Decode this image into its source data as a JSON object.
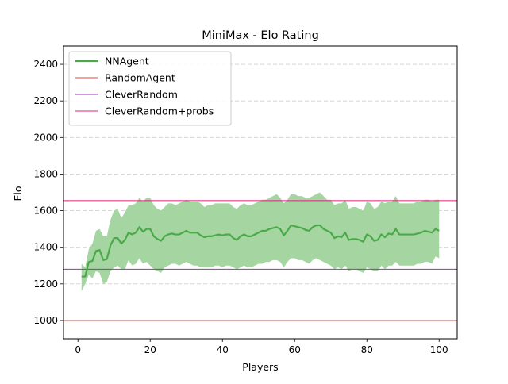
{
  "chart_data": {
    "type": "line",
    "title": "MiniMax - Elo Rating",
    "xlabel": "Players",
    "ylabel": "Elo",
    "xlim": [
      -4,
      105
    ],
    "ylim": [
      900,
      2500
    ],
    "xticks": [
      0,
      20,
      40,
      60,
      80,
      100
    ],
    "yticks": [
      1000,
      1200,
      1400,
      1600,
      1800,
      2000,
      2200,
      2400
    ],
    "grid": "horizontal dashed",
    "legend_position": "top-left",
    "series": [
      {
        "name": "NNAgent",
        "color": "#4aaa4a",
        "band_color": "#a5d6a1",
        "x": [
          1,
          2,
          3,
          4,
          5,
          6,
          7,
          8,
          9,
          10,
          11,
          12,
          13,
          14,
          15,
          16,
          17,
          18,
          19,
          20,
          21,
          22,
          23,
          24,
          25,
          26,
          27,
          28,
          29,
          30,
          31,
          32,
          33,
          34,
          35,
          36,
          37,
          38,
          39,
          40,
          41,
          42,
          43,
          44,
          45,
          46,
          47,
          48,
          49,
          50,
          51,
          52,
          53,
          54,
          55,
          56,
          57,
          58,
          59,
          60,
          61,
          62,
          63,
          64,
          65,
          66,
          67,
          68,
          69,
          70,
          71,
          72,
          73,
          74,
          75,
          76,
          77,
          78,
          79,
          80,
          81,
          82,
          83,
          84,
          85,
          86,
          87,
          88,
          89,
          90,
          91,
          92,
          93,
          94,
          95,
          96,
          97,
          98,
          99,
          100
        ],
        "y": [
          1240,
          1240,
          1320,
          1325,
          1380,
          1385,
          1330,
          1335,
          1410,
          1450,
          1450,
          1420,
          1440,
          1480,
          1470,
          1480,
          1510,
          1485,
          1500,
          1500,
          1460,
          1445,
          1435,
          1460,
          1470,
          1475,
          1470,
          1470,
          1480,
          1490,
          1480,
          1480,
          1480,
          1465,
          1455,
          1460,
          1460,
          1465,
          1470,
          1465,
          1470,
          1470,
          1450,
          1440,
          1460,
          1470,
          1460,
          1460,
          1470,
          1480,
          1490,
          1490,
          1500,
          1505,
          1510,
          1500,
          1465,
          1490,
          1520,
          1515,
          1510,
          1505,
          1495,
          1490,
          1510,
          1520,
          1520,
          1500,
          1490,
          1480,
          1450,
          1460,
          1455,
          1480,
          1440,
          1445,
          1445,
          1440,
          1430,
          1470,
          1460,
          1435,
          1440,
          1470,
          1455,
          1475,
          1470,
          1500,
          1470,
          1470,
          1470,
          1470,
          1470,
          1475,
          1480,
          1490,
          1485,
          1480,
          1500,
          1490
        ],
        "lower": [
          1160,
          1200,
          1250,
          1230,
          1270,
          1260,
          1200,
          1210,
          1270,
          1290,
          1300,
          1280,
          1280,
          1330,
          1300,
          1310,
          1340,
          1310,
          1320,
          1300,
          1280,
          1270,
          1260,
          1290,
          1300,
          1310,
          1310,
          1300,
          1310,
          1320,
          1310,
          1300,
          1300,
          1290,
          1290,
          1290,
          1290,
          1300,
          1300,
          1290,
          1300,
          1300,
          1290,
          1280,
          1290,
          1300,
          1290,
          1290,
          1300,
          1310,
          1310,
          1320,
          1320,
          1330,
          1330,
          1320,
          1290,
          1320,
          1340,
          1340,
          1330,
          1330,
          1320,
          1310,
          1330,
          1340,
          1330,
          1320,
          1310,
          1300,
          1280,
          1290,
          1280,
          1300,
          1270,
          1280,
          1280,
          1270,
          1260,
          1290,
          1280,
          1270,
          1270,
          1300,
          1280,
          1300,
          1300,
          1320,
          1300,
          1300,
          1300,
          1300,
          1300,
          1310,
          1310,
          1320,
          1320,
          1310,
          1350,
          1340
        ],
        "upper": [
          1310,
          1290,
          1390,
          1420,
          1490,
          1500,
          1460,
          1460,
          1550,
          1600,
          1610,
          1560,
          1590,
          1630,
          1630,
          1640,
          1670,
          1650,
          1670,
          1670,
          1630,
          1610,
          1600,
          1620,
          1640,
          1640,
          1630,
          1640,
          1650,
          1660,
          1650,
          1650,
          1650,
          1640,
          1620,
          1630,
          1630,
          1640,
          1640,
          1640,
          1640,
          1640,
          1620,
          1610,
          1630,
          1640,
          1630,
          1630,
          1640,
          1650,
          1660,
          1660,
          1670,
          1680,
          1690,
          1670,
          1640,
          1660,
          1690,
          1690,
          1680,
          1680,
          1670,
          1670,
          1680,
          1690,
          1700,
          1680,
          1660,
          1660,
          1630,
          1640,
          1640,
          1660,
          1610,
          1620,
          1620,
          1610,
          1600,
          1650,
          1640,
          1610,
          1620,
          1650,
          1640,
          1650,
          1650,
          1680,
          1640,
          1640,
          1640,
          1640,
          1640,
          1650,
          1650,
          1660,
          1660,
          1650,
          1660,
          1660
        ]
      },
      {
        "name": "RandomAgent",
        "color": "#e8453c",
        "constant": 1000
      },
      {
        "name": "CleverRandom",
        "color": "#a02cc0",
        "constant": 1280
      },
      {
        "name": "CleverRandom+probs",
        "color": "#e0207c",
        "constant": 1655
      }
    ]
  }
}
